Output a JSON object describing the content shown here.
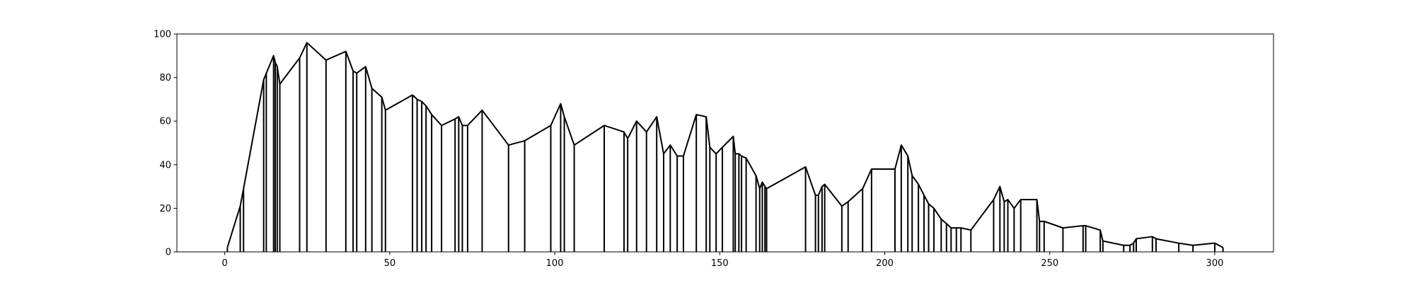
{
  "chart_data": {
    "type": "stem",
    "color": "#000000",
    "grid": false,
    "x": [
      0.8,
      4.7,
      5.7,
      11.8,
      12.6,
      14.8,
      15.3,
      15.9,
      16.7,
      22.7,
      24.9,
      30.7,
      36.7,
      38.9,
      40,
      42.7,
      44.6,
      47.6,
      48.7,
      56.9,
      58.3,
      59.7,
      61,
      62.7,
      65.7,
      69.8,
      70.9,
      72,
      73.6,
      78,
      86,
      90.9,
      98.8,
      101.8,
      102.9,
      105.9,
      115,
      121,
      122.1,
      124.8,
      127.8,
      130.9,
      133,
      135,
      137.1,
      139,
      142.9,
      145.9,
      147,
      148.9,
      150.8,
      154.1,
      154.7,
      155.8,
      156.6,
      158,
      161,
      162.1,
      162.9,
      163.7,
      164.2,
      176,
      179,
      179.9,
      181,
      181.8,
      187,
      188.9,
      193.3,
      196,
      203.1,
      205,
      207,
      208.3,
      210.2,
      211.9,
      213.3,
      214.9,
      217.1,
      218.7,
      220.1,
      221.7,
      223.1,
      226.1,
      233,
      234.9,
      236.2,
      237.3,
      239.2,
      241.2,
      246.1,
      246.9,
      248.3,
      254,
      260.1,
      260.9,
      265.3,
      266.1,
      272.4,
      274.3,
      275.4,
      276.2,
      281.1,
      282.2,
      289.1,
      293.4,
      300,
      302.5
    ],
    "values": [
      2,
      21,
      29,
      79,
      82,
      90,
      87,
      85,
      77,
      89,
      96,
      88,
      92,
      83,
      82,
      85,
      75,
      71,
      65,
      72,
      70,
      69,
      67,
      63,
      58,
      61,
      62,
      58,
      58,
      65,
      49,
      51,
      58,
      68,
      62,
      49,
      58,
      55,
      52,
      60,
      55,
      62,
      45,
      49,
      44,
      44,
      63,
      62,
      48,
      45,
      48,
      53,
      45,
      45,
      44,
      43,
      35,
      29,
      32,
      30,
      29,
      39,
      26,
      26,
      30,
      31,
      21,
      23,
      29,
      38,
      38,
      49,
      44,
      35,
      31,
      26,
      22,
      20,
      15,
      13,
      11,
      11,
      11,
      10,
      24,
      30,
      23,
      24,
      20,
      24,
      24,
      14,
      14,
      11,
      12,
      12,
      10,
      5,
      3,
      3,
      4,
      6,
      7,
      6,
      4,
      3,
      4,
      2
    ],
    "xlim": [
      -14.5,
      317.8
    ],
    "ylim": [
      0,
      100
    ],
    "xticks": [
      0,
      50,
      100,
      150,
      200,
      250,
      300
    ],
    "yticks": [
      0,
      20,
      40,
      60,
      80,
      100
    ]
  }
}
